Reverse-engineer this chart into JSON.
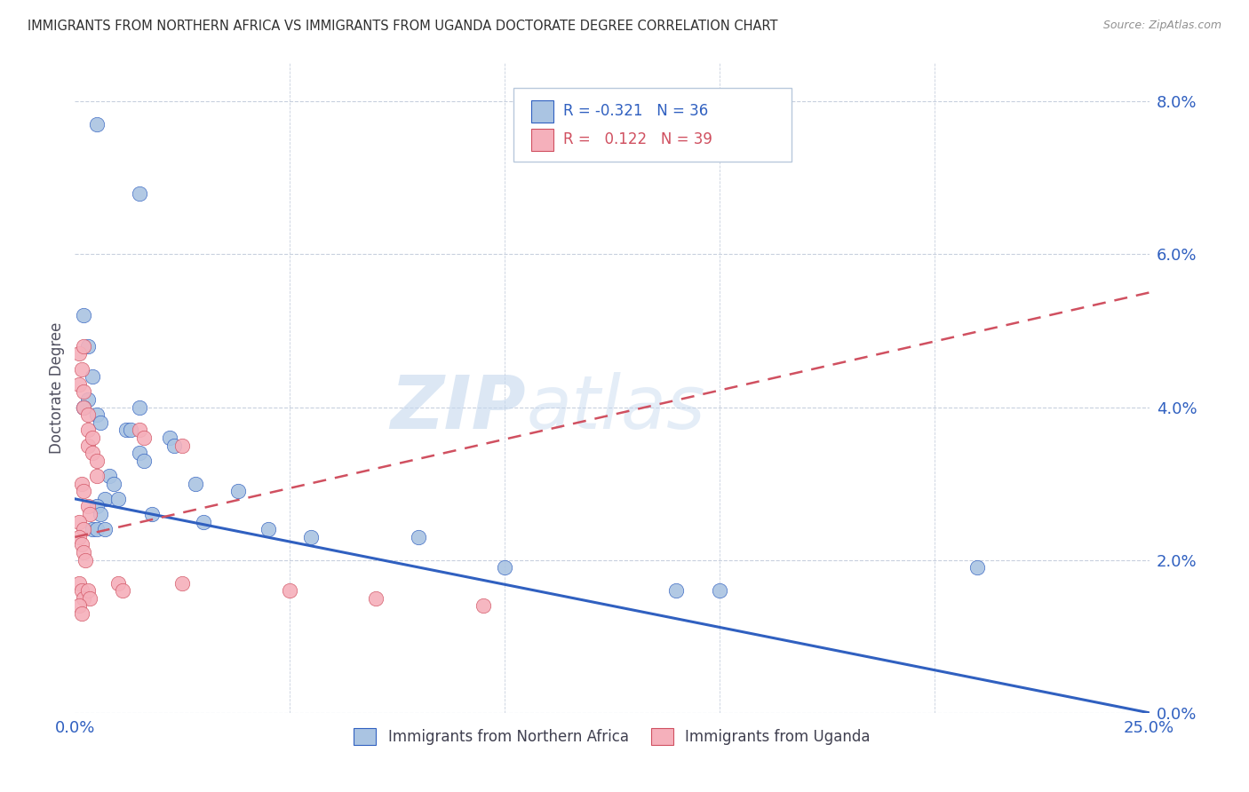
{
  "title": "IMMIGRANTS FROM NORTHERN AFRICA VS IMMIGRANTS FROM UGANDA DOCTORATE DEGREE CORRELATION CHART",
  "source": "Source: ZipAtlas.com",
  "ylabel": "Doctorate Degree",
  "ytick_values": [
    0.0,
    2.0,
    4.0,
    6.0,
    8.0
  ],
  "xtick_values": [
    0.0,
    5.0,
    10.0,
    15.0,
    20.0,
    25.0
  ],
  "legend_blue_r": "-0.321",
  "legend_blue_n": "36",
  "legend_pink_r": "0.122",
  "legend_pink_n": "39",
  "legend_blue_label": "Immigrants from Northern Africa",
  "legend_pink_label": "Immigrants from Uganda",
  "blue_color": "#aac4e2",
  "pink_color": "#f5b0bb",
  "trend_blue_color": "#3060c0",
  "trend_pink_color": "#d05060",
  "watermark_zip": "ZIP",
  "watermark_atlas": "atlas",
  "blue_scatter": [
    [
      0.5,
      7.7
    ],
    [
      1.5,
      6.8
    ],
    [
      0.2,
      5.2
    ],
    [
      0.3,
      4.8
    ],
    [
      0.4,
      4.4
    ],
    [
      0.3,
      4.1
    ],
    [
      0.2,
      4.0
    ],
    [
      1.5,
      4.0
    ],
    [
      0.5,
      3.9
    ],
    [
      0.6,
      3.8
    ],
    [
      1.2,
      3.7
    ],
    [
      1.3,
      3.7
    ],
    [
      2.2,
      3.6
    ],
    [
      2.3,
      3.5
    ],
    [
      1.5,
      3.4
    ],
    [
      1.6,
      3.3
    ],
    [
      0.8,
      3.1
    ],
    [
      0.9,
      3.0
    ],
    [
      2.8,
      3.0
    ],
    [
      3.8,
      2.9
    ],
    [
      0.7,
      2.8
    ],
    [
      1.0,
      2.8
    ],
    [
      0.5,
      2.7
    ],
    [
      0.6,
      2.6
    ],
    [
      1.8,
      2.6
    ],
    [
      3.0,
      2.5
    ],
    [
      0.4,
      2.4
    ],
    [
      0.5,
      2.4
    ],
    [
      0.7,
      2.4
    ],
    [
      4.5,
      2.4
    ],
    [
      5.5,
      2.3
    ],
    [
      8.0,
      2.3
    ],
    [
      10.0,
      1.9
    ],
    [
      14.0,
      1.6
    ],
    [
      15.0,
      1.6
    ],
    [
      21.0,
      1.9
    ]
  ],
  "pink_scatter": [
    [
      0.1,
      4.7
    ],
    [
      0.15,
      4.5
    ],
    [
      0.1,
      4.3
    ],
    [
      0.2,
      4.8
    ],
    [
      0.2,
      4.2
    ],
    [
      0.2,
      4.0
    ],
    [
      0.3,
      3.9
    ],
    [
      0.3,
      3.7
    ],
    [
      0.3,
      3.5
    ],
    [
      0.4,
      3.6
    ],
    [
      0.4,
      3.4
    ],
    [
      0.5,
      3.3
    ],
    [
      0.5,
      3.1
    ],
    [
      1.5,
      3.7
    ],
    [
      1.6,
      3.6
    ],
    [
      2.5,
      3.5
    ],
    [
      0.15,
      3.0
    ],
    [
      0.2,
      2.9
    ],
    [
      0.3,
      2.7
    ],
    [
      0.35,
      2.6
    ],
    [
      0.1,
      2.5
    ],
    [
      0.2,
      2.4
    ],
    [
      0.1,
      2.3
    ],
    [
      0.15,
      2.2
    ],
    [
      0.2,
      2.1
    ],
    [
      0.25,
      2.0
    ],
    [
      0.1,
      1.7
    ],
    [
      0.15,
      1.6
    ],
    [
      0.2,
      1.5
    ],
    [
      0.3,
      1.6
    ],
    [
      0.35,
      1.5
    ],
    [
      0.1,
      1.4
    ],
    [
      0.15,
      1.3
    ],
    [
      1.0,
      1.7
    ],
    [
      1.1,
      1.6
    ],
    [
      2.5,
      1.7
    ],
    [
      5.0,
      1.6
    ],
    [
      7.0,
      1.5
    ],
    [
      9.5,
      1.4
    ]
  ],
  "blue_trend_x": [
    0.0,
    25.0
  ],
  "blue_trend_y": [
    2.8,
    0.0
  ],
  "pink_trend_x": [
    0.0,
    25.0
  ],
  "pink_trend_y": [
    2.3,
    5.5
  ],
  "xlim": [
    0.0,
    25.0
  ],
  "ylim": [
    0.0,
    8.5
  ]
}
